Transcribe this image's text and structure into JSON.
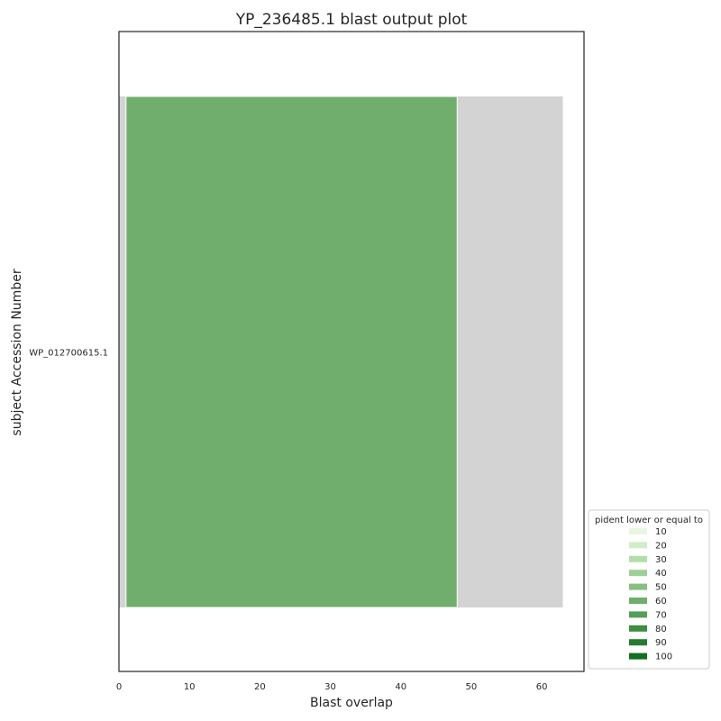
{
  "chart_data": {
    "type": "bar",
    "orientation": "horizontal",
    "title": "YP_236485.1 blast output plot",
    "xlabel": "Blast overlap",
    "ylabel": "subject Accession Number",
    "xlim": [
      0,
      66
    ],
    "xticks": [
      0,
      10,
      20,
      30,
      40,
      50,
      60
    ],
    "categories": [
      "WP_012700615.1"
    ],
    "query_length": 63,
    "query_color": "#d3d3d3",
    "hits": [
      {
        "subject": "WP_012700615.1",
        "start": 1,
        "end": 48,
        "pident_bin": 60,
        "color": "#70ae6e"
      }
    ],
    "grid": false,
    "legend": {
      "title": "pident lower or equal to",
      "placement": "bottom-right outside",
      "items": [
        {
          "label": "10",
          "color": "#e8f6e3"
        },
        {
          "label": "20",
          "color": "#d0ecc8"
        },
        {
          "label": "30",
          "color": "#b3deaa"
        },
        {
          "label": "40",
          "color": "#9fcf97"
        },
        {
          "label": "50",
          "color": "#86bf80"
        },
        {
          "label": "60",
          "color": "#70ae6e"
        },
        {
          "label": "70",
          "color": "#569f58"
        },
        {
          "label": "80",
          "color": "#3f8d41"
        },
        {
          "label": "90",
          "color": "#277a30"
        },
        {
          "label": "100",
          "color": "#136f21"
        }
      ]
    }
  }
}
